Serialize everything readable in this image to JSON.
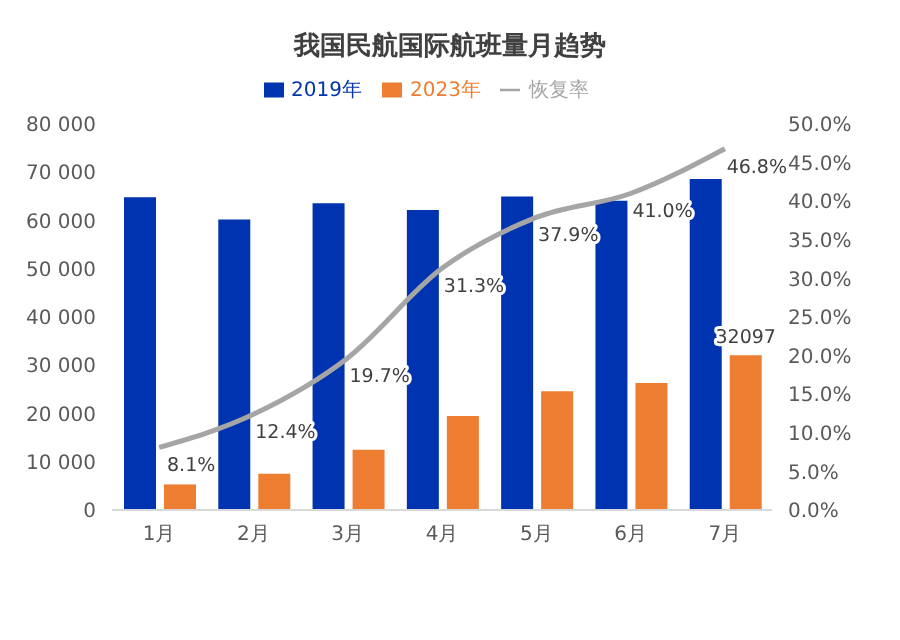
{
  "chart_data": {
    "type": "bar",
    "title": "我国民航国际航班量月趋势",
    "categories": [
      "1月",
      "2月",
      "3月",
      "4月",
      "5月",
      "6月",
      "7月"
    ],
    "series": [
      {
        "name": "2019年",
        "color": "#0033b0",
        "values": [
          64800,
          60200,
          63600,
          62200,
          65000,
          64100,
          68600
        ]
      },
      {
        "name": "2023年",
        "color": "#ed7d31",
        "values": [
          5300,
          7500,
          12500,
          19500,
          24600,
          26300,
          32097
        ],
        "value_labels": [
          null,
          null,
          null,
          null,
          null,
          null,
          "32097"
        ]
      },
      {
        "name": "恢复率",
        "type": "line",
        "axis": "y2",
        "color": "#a5a5a5",
        "values": [
          8.1,
          12.4,
          19.7,
          31.3,
          37.9,
          41.0,
          46.8
        ],
        "value_labels": [
          "8.1%",
          "12.4%",
          "19.7%",
          "31.3%",
          "37.9%",
          "41.0%",
          "46.8%"
        ]
      }
    ],
    "ylim": [
      0,
      80000
    ],
    "yticks": [
      {
        "value": 0,
        "label": "0"
      },
      {
        "value": 10000,
        "label": "10 000"
      },
      {
        "value": 20000,
        "label": "20 000"
      },
      {
        "value": 30000,
        "label": "30 000"
      },
      {
        "value": 40000,
        "label": "40 000"
      },
      {
        "value": 50000,
        "label": "50 000"
      },
      {
        "value": 60000,
        "label": "60 000"
      },
      {
        "value": 70000,
        "label": "70 000"
      },
      {
        "value": 80000,
        "label": "80 000"
      }
    ],
    "y2lim": [
      0,
      50
    ],
    "y2ticks": [
      {
        "value": 0,
        "label": "0.0%"
      },
      {
        "value": 5,
        "label": "5.0%"
      },
      {
        "value": 10,
        "label": "10.0%"
      },
      {
        "value": 15,
        "label": "15.0%"
      },
      {
        "value": 20,
        "label": "20.0%"
      },
      {
        "value": 25,
        "label": "25.0%"
      },
      {
        "value": 30,
        "label": "30.0%"
      },
      {
        "value": 35,
        "label": "35.0%"
      },
      {
        "value": 40,
        "label": "40.0%"
      },
      {
        "value": 45,
        "label": "45.0%"
      },
      {
        "value": 50,
        "label": "50.0%"
      }
    ],
    "grid": false,
    "legend": "top",
    "marker": "none"
  }
}
